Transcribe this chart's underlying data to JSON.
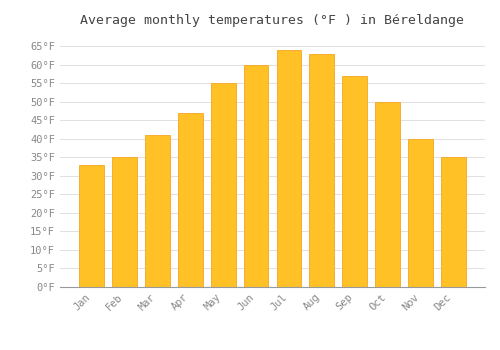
{
  "months": [
    "Jan",
    "Feb",
    "Mar",
    "Apr",
    "May",
    "Jun",
    "Jul",
    "Aug",
    "Sep",
    "Oct",
    "Nov",
    "Dec"
  ],
  "values": [
    33,
    35,
    41,
    47,
    55,
    60,
    64,
    63,
    57,
    50,
    40,
    35
  ],
  "bar_color": "#FFC125",
  "bar_edge_color": "#F5A623",
  "title": "Average monthly temperatures (°F ) in Béreldange",
  "ylim": [
    0,
    68
  ],
  "ytick_step": 5,
  "background_color": "#ffffff",
  "grid_color": "#e0e0e0",
  "title_fontsize": 9.5,
  "tick_fontsize": 7.5,
  "font_family": "monospace",
  "tick_color": "#888888",
  "bar_width": 0.75
}
